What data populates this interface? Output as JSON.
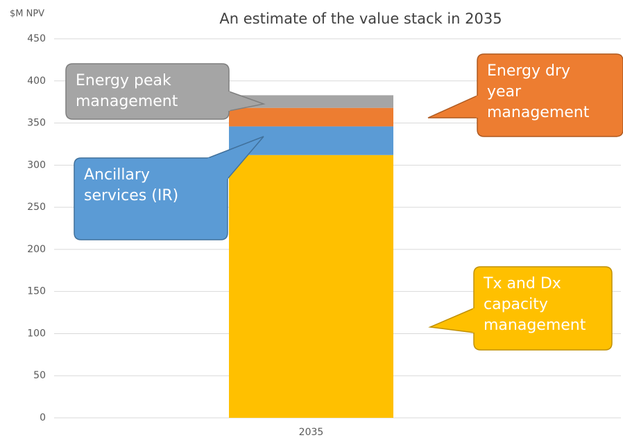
{
  "chart_data": {
    "type": "bar",
    "stacked": true,
    "title": "An estimate of the value stack in 2035",
    "y_axis_label": "$M NPV",
    "categories": [
      "2035"
    ],
    "series": [
      {
        "name": "Tx and Dx capacity management",
        "color": "#ffc000",
        "values": [
          312
        ]
      },
      {
        "name": "Ancillary services (IR)",
        "color": "#5b9bd5",
        "values": [
          34
        ]
      },
      {
        "name": "Energy dry year management",
        "color": "#ed7d31",
        "values": [
          22
        ]
      },
      {
        "name": "Energy peak management",
        "color": "#a5a5a5",
        "values": [
          15
        ]
      }
    ],
    "ylim": [
      0,
      450
    ],
    "yticks": [
      0,
      50,
      100,
      150,
      200,
      250,
      300,
      350,
      400,
      450
    ],
    "grid": true
  }
}
